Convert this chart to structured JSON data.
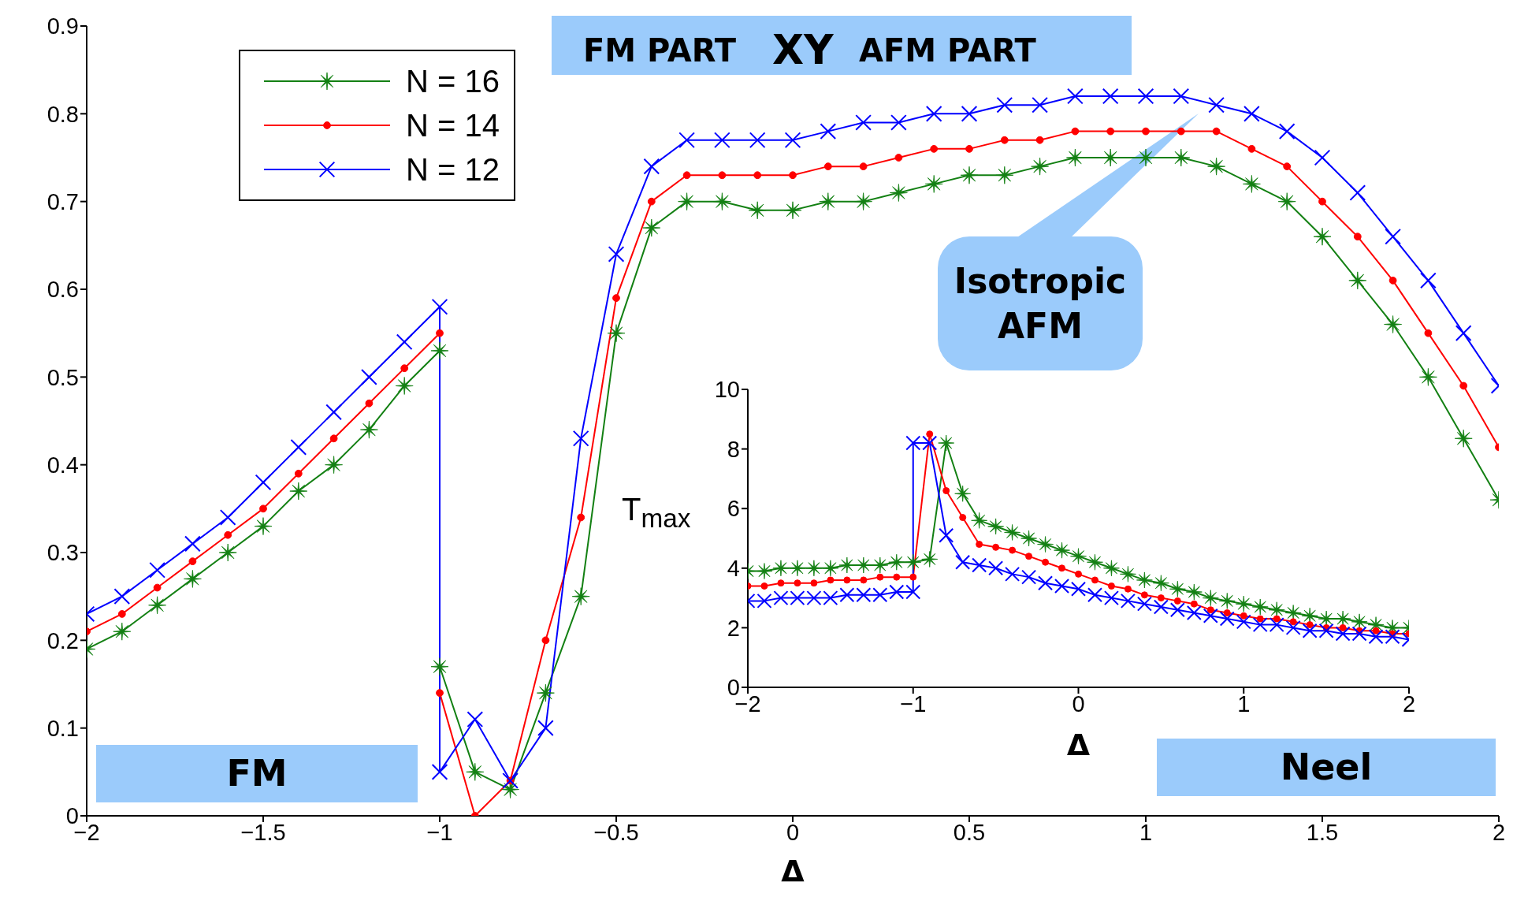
{
  "chart_data": [
    {
      "type": "line",
      "xlabel": "Δ",
      "xlim": [
        -2,
        2
      ],
      "xticks": [
        -2,
        -1.5,
        -1,
        -0.5,
        0,
        0.5,
        1,
        1.5,
        2
      ],
      "ylim": [
        0,
        0.9
      ],
      "yticks": [
        0,
        0.1,
        0.2,
        0.3,
        0.4,
        0.5,
        0.6,
        0.7,
        0.8,
        0.9
      ],
      "grid": false,
      "legend": "top left",
      "x": [
        -2,
        -1.9,
        -1.8,
        -1.7,
        -1.6,
        -1.5,
        -1.4,
        -1.3,
        -1.2,
        -1.1,
        -1,
        -1,
        -0.9,
        -0.8,
        -0.7,
        -0.6,
        -0.5,
        -0.4,
        -0.3,
        -0.2,
        -0.1,
        0,
        0.1,
        0.2,
        0.3,
        0.4,
        0.5,
        0.6,
        0.7,
        0.8,
        0.9,
        1,
        1.1,
        1.2,
        1.3,
        1.4,
        1.5,
        1.6,
        1.7,
        1.8,
        1.9,
        2
      ],
      "series": [
        {
          "name": "N = 16",
          "color": "#138013",
          "marker": "star",
          "values": [
            0.19,
            0.21,
            0.24,
            0.27,
            0.3,
            0.33,
            0.37,
            0.4,
            0.44,
            0.49,
            0.53,
            0.17,
            0.05,
            0.03,
            0.14,
            0.25,
            0.55,
            0.67,
            0.7,
            0.7,
            0.69,
            0.69,
            0.7,
            0.7,
            0.71,
            0.72,
            0.73,
            0.73,
            0.74,
            0.75,
            0.75,
            0.75,
            0.75,
            0.74,
            0.72,
            0.7,
            0.66,
            0.61,
            0.56,
            0.5,
            0.43,
            0.36
          ]
        },
        {
          "name": "N = 14",
          "color": "#ff0000",
          "marker": "circle",
          "values": [
            0.21,
            0.23,
            0.26,
            0.29,
            0.32,
            0.35,
            0.39,
            0.43,
            0.47,
            0.51,
            0.55,
            0.14,
            0,
            0.04,
            0.2,
            0.34,
            0.59,
            0.7,
            0.73,
            0.73,
            0.73,
            0.73,
            0.74,
            0.74,
            0.75,
            0.76,
            0.76,
            0.77,
            0.77,
            0.78,
            0.78,
            0.78,
            0.78,
            0.78,
            0.76,
            0.74,
            0.7,
            0.66,
            0.61,
            0.55,
            0.49,
            0.42
          ]
        },
        {
          "name": "N = 12",
          "color": "#0000ff",
          "marker": "cross",
          "values": [
            0.23,
            0.25,
            0.28,
            0.31,
            0.34,
            0.38,
            0.42,
            0.46,
            0.5,
            0.54,
            0.58,
            0.05,
            0.11,
            0.04,
            0.1,
            0.43,
            0.64,
            0.74,
            0.77,
            0.77,
            0.77,
            0.77,
            0.78,
            0.79,
            0.79,
            0.8,
            0.8,
            0.81,
            0.81,
            0.82,
            0.82,
            0.82,
            0.82,
            0.81,
            0.8,
            0.78,
            0.75,
            0.71,
            0.66,
            0.61,
            0.55,
            0.49
          ]
        }
      ],
      "annotations": [
        "FM PART",
        "XY",
        "AFM PART",
        "Isotropic AFM",
        "FM",
        "Neel"
      ]
    },
    {
      "type": "line",
      "xlabel": "Δ",
      "ylabel": "T$_{max}$",
      "xlim": [
        -2,
        2
      ],
      "xticks": [
        -2,
        -1,
        0,
        1,
        2
      ],
      "ylim": [
        0,
        10
      ],
      "yticks": [
        0,
        2,
        4,
        6,
        8,
        10
      ],
      "grid": false,
      "x": [
        -2,
        -1.9,
        -1.8,
        -1.7,
        -1.6,
        -1.5,
        -1.4,
        -1.3,
        -1.2,
        -1.1,
        -1,
        -0.9,
        -0.8,
        -0.7,
        -0.6,
        -0.5,
        -0.4,
        -0.3,
        -0.2,
        -0.1,
        0,
        0.1,
        0.2,
        0.3,
        0.4,
        0.5,
        0.6,
        0.7,
        0.8,
        0.9,
        1,
        1.1,
        1.2,
        1.3,
        1.4,
        1.5,
        1.6,
        1.7,
        1.8,
        1.9,
        2
      ],
      "series": [
        {
          "color": "#138013",
          "marker": "star",
          "values": [
            3.9,
            3.9,
            4.0,
            4.0,
            4.0,
            4.0,
            4.1,
            4.1,
            4.1,
            4.2,
            4.2,
            4.3,
            8.2,
            6.5,
            5.6,
            5.4,
            5.2,
            5.0,
            4.8,
            4.6,
            4.4,
            4.2,
            4.0,
            3.8,
            3.6,
            3.5,
            3.3,
            3.2,
            3.0,
            2.9,
            2.8,
            2.7,
            2.6,
            2.5,
            2.4,
            2.3,
            2.3,
            2.2,
            2.1,
            2.0,
            2.0
          ]
        },
        {
          "color": "#ff0000",
          "marker": "circle",
          "values": [
            3.4,
            3.4,
            3.5,
            3.5,
            3.5,
            3.6,
            3.6,
            3.6,
            3.7,
            3.7,
            3.7,
            8.5,
            6.6,
            5.7,
            4.8,
            4.7,
            4.6,
            4.4,
            4.2,
            4.0,
            3.8,
            3.6,
            3.4,
            3.3,
            3.1,
            3.0,
            2.9,
            2.8,
            2.6,
            2.5,
            2.4,
            2.3,
            2.3,
            2.2,
            2.1,
            2.0,
            2.0,
            1.9,
            1.9,
            1.8,
            1.8
          ]
        },
        {
          "color": "#0000ff",
          "marker": "cross",
          "x": [
            -2,
            -1.9,
            -1.8,
            -1.7,
            -1.6,
            -1.5,
            -1.4,
            -1.3,
            -1.2,
            -1.1,
            -1,
            -1,
            -0.9,
            -0.8,
            -0.7,
            -0.6,
            -0.5,
            -0.4,
            -0.3,
            -0.2,
            -0.1,
            0,
            0.1,
            0.2,
            0.3,
            0.4,
            0.5,
            0.6,
            0.7,
            0.8,
            0.9,
            1,
            1.1,
            1.2,
            1.3,
            1.4,
            1.5,
            1.6,
            1.7,
            1.8,
            1.9,
            2
          ],
          "values": [
            2.9,
            2.9,
            3.0,
            3.0,
            3.0,
            3.0,
            3.1,
            3.1,
            3.1,
            3.2,
            3.2,
            8.2,
            8.2,
            5.1,
            4.2,
            4.1,
            4.0,
            3.8,
            3.7,
            3.5,
            3.4,
            3.3,
            3.1,
            3.0,
            2.9,
            2.8,
            2.7,
            2.6,
            2.5,
            2.4,
            2.3,
            2.2,
            2.1,
            2.1,
            2.0,
            1.9,
            1.9,
            1.8,
            1.8,
            1.7,
            1.7,
            1.6
          ]
        }
      ]
    }
  ]
}
